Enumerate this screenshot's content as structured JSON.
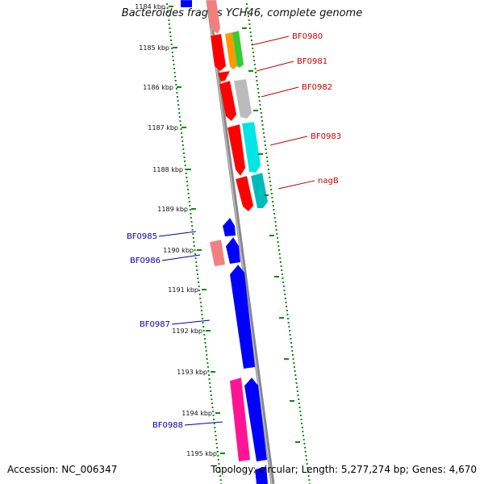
{
  "title": "Bacteroides fragilis YCH46, complete genome",
  "footer": {
    "accession": "Accession: NC_006347",
    "summary": "Topology: circular; Length: 5,277,274 bp; Genes: 4,670"
  },
  "ticks": [
    "1184 kbp",
    "1185 kbp",
    "1186 kbp",
    "1187 kbp",
    "1188 kbp",
    "1189 kbp",
    "1190 kbp",
    "1191 kbp",
    "1192 kbp",
    "1193 kbp",
    "1194 kbp",
    "1195 kbp"
  ],
  "colors": {
    "forward_label": "#cc0000",
    "reverse_label": "#0000aa",
    "backbone": "#888888",
    "tick": "#118811",
    "red": "#ff0000",
    "pink": "#f08080",
    "orange": "#ff9900",
    "green": "#33cc33",
    "gray": "#bbbbbb",
    "cyan": "#00e5e5",
    "teal": "#00bbbb",
    "blue": "#0000ff",
    "magenta": "#ff1493"
  },
  "gene_labels": [
    {
      "text": "BF0980",
      "strand": "forward"
    },
    {
      "text": "BF0981",
      "strand": "forward"
    },
    {
      "text": "BF0982",
      "strand": "forward"
    },
    {
      "text": "BF0983",
      "strand": "forward"
    },
    {
      "text": "nagB",
      "strand": "forward"
    },
    {
      "text": "BF0985",
      "strand": "reverse"
    },
    {
      "text": "BF0986",
      "strand": "reverse"
    },
    {
      "text": "BF0987",
      "strand": "reverse"
    },
    {
      "text": "BF0988",
      "strand": "reverse"
    }
  ],
  "features": [
    {
      "color": "pink",
      "strand": "forward"
    },
    {
      "color": "blue",
      "strand": "reverse"
    },
    {
      "color": "red",
      "strand": "forward"
    },
    {
      "color": "orange",
      "strand": "forward"
    },
    {
      "color": "green",
      "strand": "forward"
    },
    {
      "color": "red",
      "strand": "forward"
    },
    {
      "color": "red",
      "strand": "forward"
    },
    {
      "color": "gray",
      "strand": "forward"
    },
    {
      "color": "red",
      "strand": "forward"
    },
    {
      "color": "cyan",
      "strand": "forward"
    },
    {
      "color": "red",
      "strand": "forward"
    },
    {
      "color": "teal",
      "strand": "forward"
    },
    {
      "color": "blue",
      "strand": "reverse"
    },
    {
      "color": "pink",
      "strand": "forward"
    },
    {
      "color": "blue",
      "strand": "reverse"
    },
    {
      "color": "blue",
      "strand": "reverse"
    },
    {
      "color": "magenta",
      "strand": "forward"
    },
    {
      "color": "blue",
      "strand": "reverse"
    },
    {
      "color": "blue",
      "strand": "reverse"
    }
  ]
}
